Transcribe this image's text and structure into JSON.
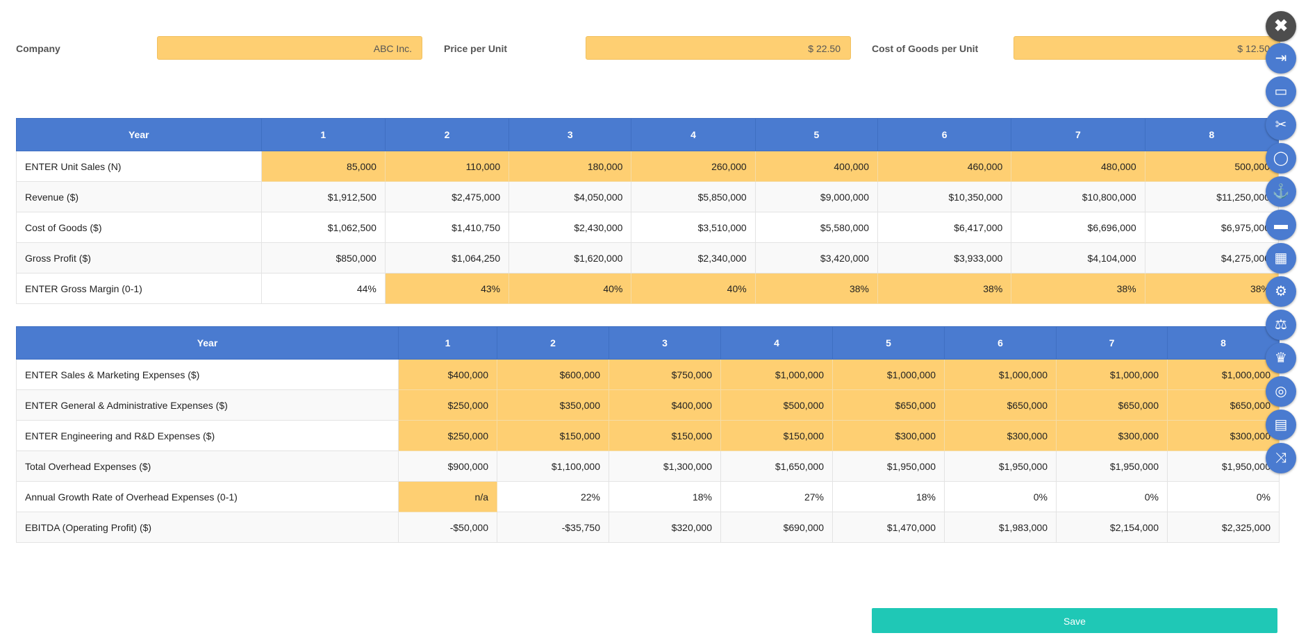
{
  "inputs": {
    "company_label": "Company",
    "company_value": "ABC Inc.",
    "price_label": "Price per Unit",
    "price_value": "$ 22.50",
    "cogs_label": "Cost of Goods per Unit",
    "cogs_value": "$ 12.50"
  },
  "table1": {
    "header": [
      "Year",
      "1",
      "2",
      "3",
      "4",
      "5",
      "6",
      "7",
      "8"
    ],
    "rows": [
      {
        "label": "ENTER Unit Sales (N)",
        "cells": [
          "85,000",
          "110,000",
          "180,000",
          "260,000",
          "400,000",
          "460,000",
          "480,000",
          "500,000"
        ]
      },
      {
        "label": "Revenue ($)",
        "cells": [
          "$1,912,500",
          "$2,475,000",
          "$4,050,000",
          "$5,850,000",
          "$9,000,000",
          "$10,350,000",
          "$10,800,000",
          "$11,250,000"
        ]
      },
      {
        "label": "Cost of Goods ($)",
        "cells": [
          "$1,062,500",
          "$1,410,750",
          "$2,430,000",
          "$3,510,000",
          "$5,580,000",
          "$6,417,000",
          "$6,696,000",
          "$6,975,000"
        ]
      },
      {
        "label": "Gross Profit ($)",
        "cells": [
          "$850,000",
          "$1,064,250",
          "$1,620,000",
          "$2,340,000",
          "$3,420,000",
          "$3,933,000",
          "$4,104,000",
          "$4,275,000"
        ]
      },
      {
        "label": "ENTER Gross Margin (0-1)",
        "cells": [
          "44%",
          "43%",
          "40%",
          "40%",
          "38%",
          "38%",
          "38%",
          "38%"
        ]
      }
    ]
  },
  "table2": {
    "header": [
      "Year",
      "1",
      "2",
      "3",
      "4",
      "5",
      "6",
      "7",
      "8"
    ],
    "rows": [
      {
        "label": "ENTER Sales & Marketing Expenses ($)",
        "cells": [
          "$400,000",
          "$600,000",
          "$750,000",
          "$1,000,000",
          "$1,000,000",
          "$1,000,000",
          "$1,000,000",
          "$1,000,000"
        ]
      },
      {
        "label": "ENTER General & Administrative Expenses ($)",
        "cells": [
          "$250,000",
          "$350,000",
          "$400,000",
          "$500,000",
          "$650,000",
          "$650,000",
          "$650,000",
          "$650,000"
        ]
      },
      {
        "label": "ENTER Engineering and R&D Expenses ($)",
        "cells": [
          "$250,000",
          "$150,000",
          "$150,000",
          "$150,000",
          "$300,000",
          "$300,000",
          "$300,000",
          "$300,000"
        ]
      },
      {
        "label": "Total Overhead Expenses ($)",
        "cells": [
          "$900,000",
          "$1,100,000",
          "$1,300,000",
          "$1,650,000",
          "$1,950,000",
          "$1,950,000",
          "$1,950,000",
          "$1,950,000"
        ]
      },
      {
        "label": "Annual Growth Rate of Overhead Expenses (0-1)",
        "cells": [
          "n/a",
          "22%",
          "18%",
          "27%",
          "18%",
          "0%",
          "0%",
          "0%"
        ]
      },
      {
        "label": "EBITDA (Operating Profit) ($)",
        "cells": [
          "-$50,000",
          "-$35,750",
          "$320,000",
          "$690,000",
          "$1,470,000",
          "$1,983,000",
          "$2,154,000",
          "$2,325,000"
        ]
      }
    ]
  },
  "rail_icons": [
    "close-icon",
    "sign-out-icon",
    "money-icon",
    "scissors-icon",
    "user-icon",
    "anchor-icon",
    "ticket-icon",
    "building-icon",
    "gear-icon",
    "balance-scale-icon",
    "trophy-icon",
    "brain-icon",
    "book-icon",
    "shuffle-icon"
  ],
  "save_label": "Save",
  "colors": {
    "header_blue": "#4a7bd0",
    "input_yellow": "#fecf72",
    "save_teal": "#1fc8b6",
    "close_dark": "#4d4d4d"
  }
}
